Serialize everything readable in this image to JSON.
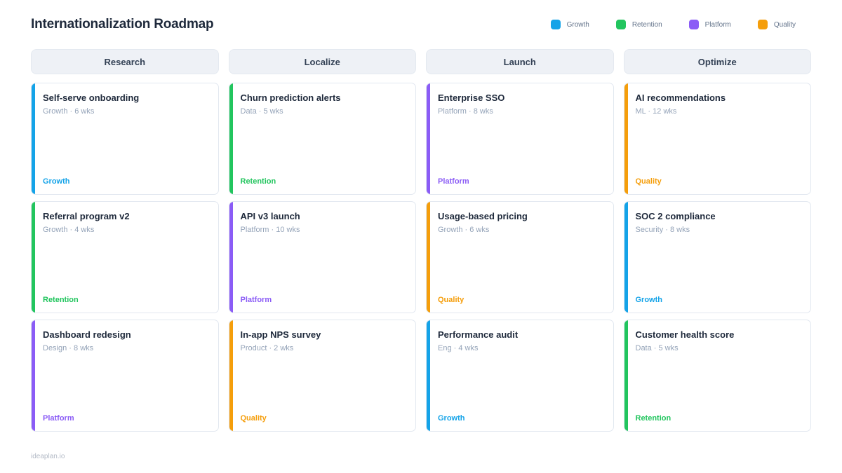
{
  "header": {
    "title": "Internationalization Roadmap"
  },
  "legend": [
    {
      "label": "Growth",
      "color": "#14a3e8"
    },
    {
      "label": "Retention",
      "color": "#22c55e"
    },
    {
      "label": "Platform",
      "color": "#8b5cf6"
    },
    {
      "label": "Quality",
      "color": "#f59e0b"
    }
  ],
  "board": {
    "columns": [
      {
        "title": "Research",
        "cards": [
          {
            "title": "Self-serve onboarding",
            "meta": "Growth · 6 wks",
            "tag": "Growth",
            "color": "#14a3e8"
          },
          {
            "title": "Referral program v2",
            "meta": "Growth · 4 wks",
            "tag": "Retention",
            "color": "#22c55e"
          },
          {
            "title": "Dashboard redesign",
            "meta": "Design · 8 wks",
            "tag": "Platform",
            "color": "#8b5cf6"
          }
        ]
      },
      {
        "title": "Localize",
        "cards": [
          {
            "title": "Churn prediction alerts",
            "meta": "Data · 5 wks",
            "tag": "Retention",
            "color": "#22c55e"
          },
          {
            "title": "API v3 launch",
            "meta": "Platform · 10 wks",
            "tag": "Platform",
            "color": "#8b5cf6"
          },
          {
            "title": "In-app NPS survey",
            "meta": "Product · 2 wks",
            "tag": "Quality",
            "color": "#f59e0b"
          }
        ]
      },
      {
        "title": "Launch",
        "cards": [
          {
            "title": "Enterprise SSO",
            "meta": "Platform · 8 wks",
            "tag": "Platform",
            "color": "#8b5cf6"
          },
          {
            "title": "Usage-based pricing",
            "meta": "Growth · 6 wks",
            "tag": "Quality",
            "color": "#f59e0b"
          },
          {
            "title": "Performance audit",
            "meta": "Eng · 4 wks",
            "tag": "Growth",
            "color": "#14a3e8"
          }
        ]
      },
      {
        "title": "Optimize",
        "cards": [
          {
            "title": "AI recommendations",
            "meta": "ML · 12 wks",
            "tag": "Quality",
            "color": "#f59e0b"
          },
          {
            "title": "SOC 2 compliance",
            "meta": "Security · 8 wks",
            "tag": "Growth",
            "color": "#14a3e8"
          },
          {
            "title": "Customer health score",
            "meta": "Data · 5 wks",
            "tag": "Retention",
            "color": "#22c55e"
          }
        ]
      }
    ]
  },
  "footer": {
    "brand": "ideaplan.io"
  }
}
